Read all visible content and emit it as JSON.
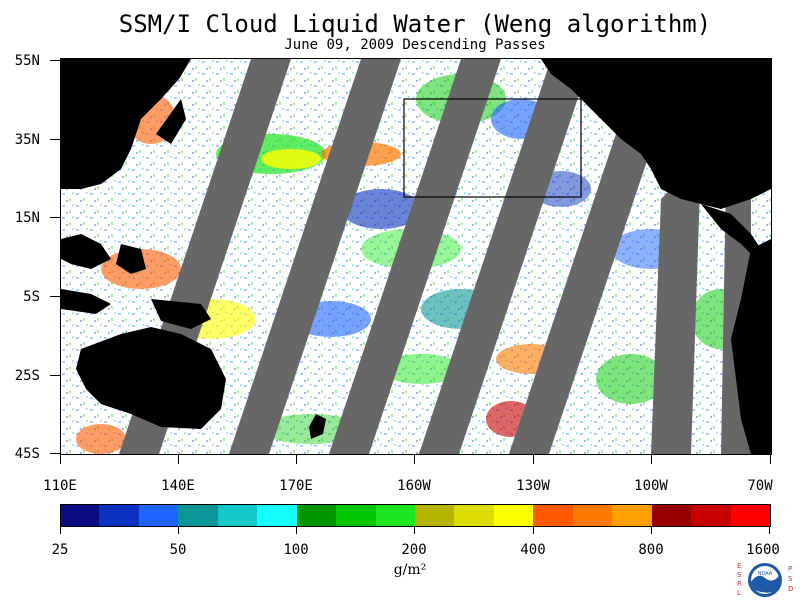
{
  "title": "SSM/I Cloud Liquid Water (Weng algorithm)",
  "subtitle": "June 09, 2009  Descending Passes",
  "lat_labels": [
    "55N",
    "35N",
    "15N",
    "5S",
    "25S",
    "45S"
  ],
  "lon_labels": [
    "110E",
    "140E",
    "170E",
    "160W",
    "130W",
    "100W",
    "70W"
  ],
  "colorbar": {
    "colors": [
      "#0a0a82",
      "#0a32be",
      "#1e64ff",
      "#0a9696",
      "#14c8c8",
      "#14ffff",
      "#009600",
      "#00c800",
      "#1ee61e",
      "#b4b400",
      "#dcdc00",
      "#ffff00",
      "#ff5a00",
      "#ff7800",
      "#ffa000",
      "#960000",
      "#c80000",
      "#ff0000"
    ],
    "labels": [
      "25",
      "50",
      "100",
      "200",
      "400",
      "800",
      "1600"
    ],
    "unit": "g/m²"
  },
  "logo": {
    "left_letters": "ESRL",
    "right_letters": "PSD",
    "center_text": "NOAA"
  }
}
